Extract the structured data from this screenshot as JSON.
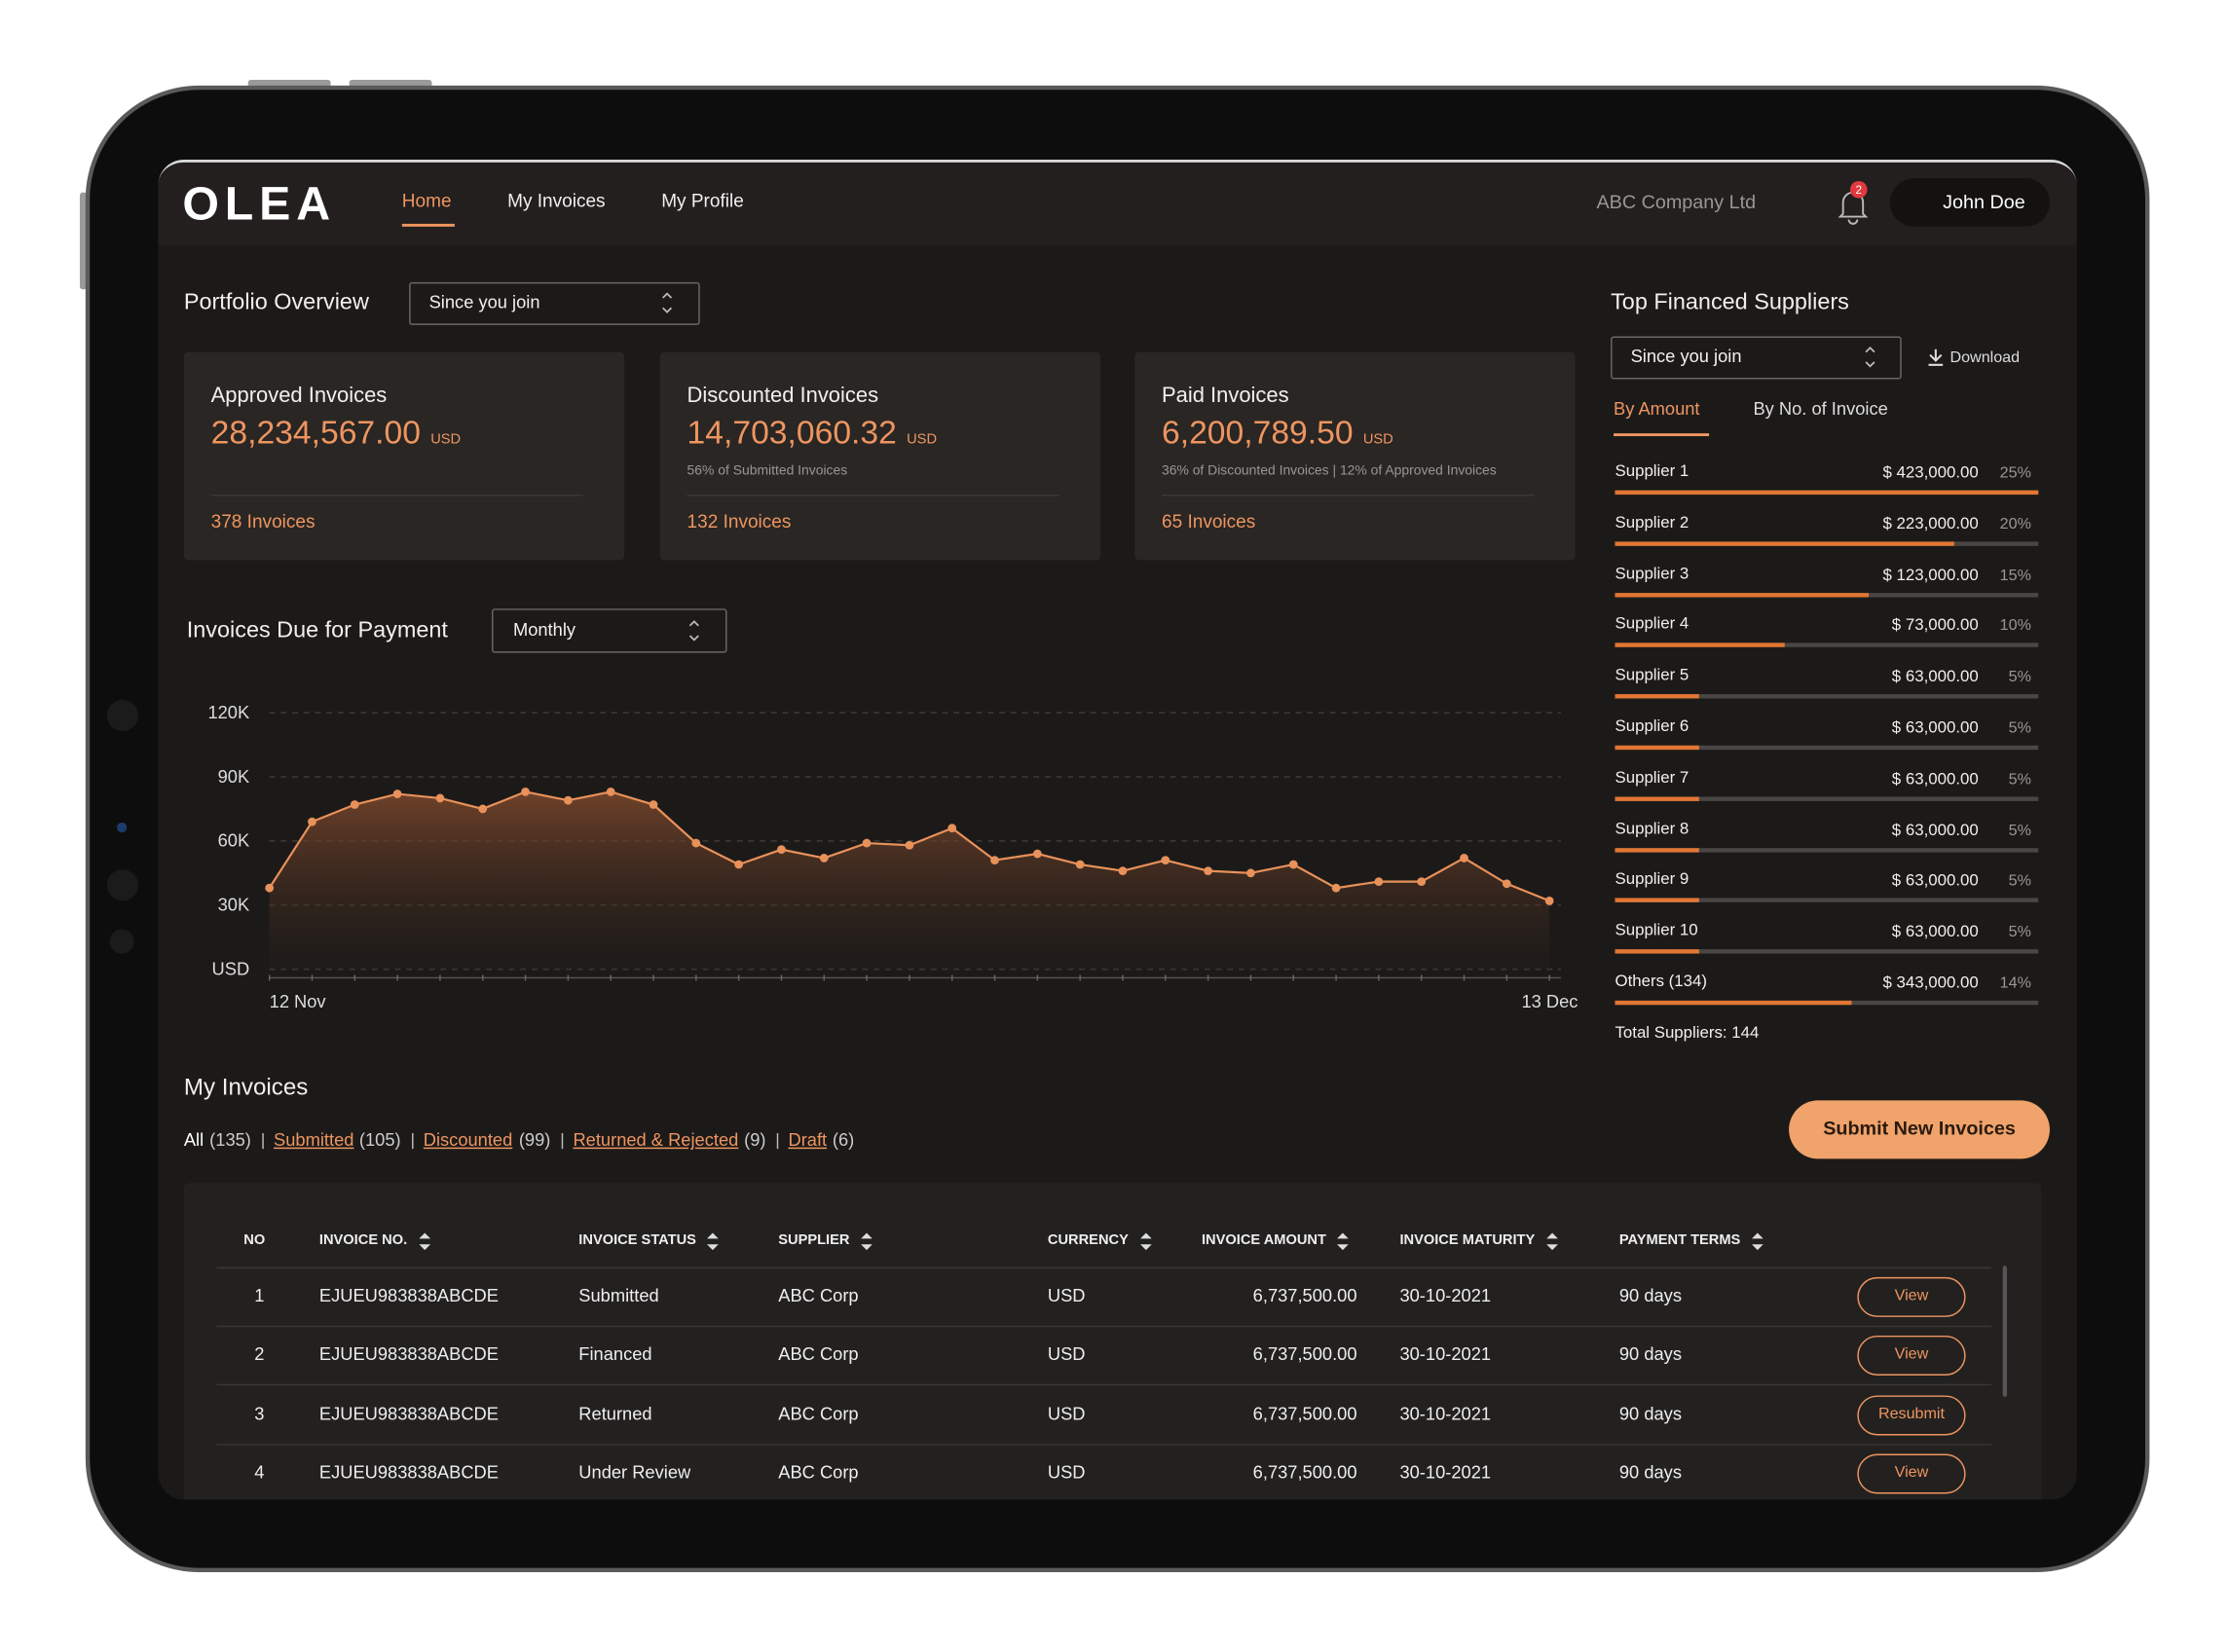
{
  "nav": {
    "logo": "OLEA",
    "links": [
      "Home",
      "My Invoices",
      "My Profile"
    ],
    "company": "ABC Company Ltd",
    "notifications": "2",
    "user": "John Doe"
  },
  "portfolio": {
    "title": "Portfolio Overview",
    "period": "Since you join",
    "cards": [
      {
        "title": "Approved Invoices",
        "amount": "28,234,567.00",
        "currency": "USD",
        "count": "378 Invoices"
      },
      {
        "title": "Discounted Invoices",
        "amount": "14,703,060.32",
        "currency": "USD",
        "note": "56% of Submitted Invoices",
        "count": "132 Invoices"
      },
      {
        "title": "Paid Invoices",
        "amount": "6,200,789.50",
        "currency": "USD",
        "note": "36% of Discounted Invoices | 12% of Approved Invoices",
        "count": "65 Invoices"
      }
    ]
  },
  "chart_data": {
    "type": "line",
    "title": "Invoices Due for Payment",
    "period": "Monthly",
    "categories": [
      "12 Nov",
      null,
      null,
      null,
      null,
      null,
      null,
      null,
      null,
      null,
      null,
      null,
      null,
      null,
      null,
      null,
      null,
      null,
      null,
      null,
      null,
      null,
      null,
      null,
      null,
      null,
      null,
      null,
      null,
      null,
      "13 Dec"
    ],
    "values": [
      38000,
      69000,
      77000,
      82000,
      80000,
      75000,
      83000,
      79000,
      83000,
      77000,
      59000,
      49000,
      56000,
      52000,
      59000,
      58000,
      66000,
      51000,
      54000,
      49000,
      46000,
      51000,
      46000,
      45000,
      49000,
      38000,
      41000,
      41000,
      52000,
      40000,
      32000
    ],
    "color": "#e8915a",
    "ylim": [
      0,
      120000
    ],
    "yticks": [
      {
        "value": 0,
        "label": "USD"
      },
      {
        "value": 30000,
        "label": "30K"
      },
      {
        "value": 60000,
        "label": "60K"
      },
      {
        "value": 90000,
        "label": "90K"
      },
      {
        "value": 120000,
        "label": "120K"
      }
    ],
    "grid": true
  },
  "suppliers": {
    "title": "Top Financed Suppliers",
    "period": "Since you join",
    "download": "Download",
    "tabs": [
      "By Amount",
      "By No. of Invoice"
    ],
    "rows": [
      {
        "name": "Supplier 1",
        "amount": "$ 423,000.00",
        "share": {
          "value": 25,
          "label": "25%"
        }
      },
      {
        "name": "Supplier 2",
        "amount": "$ 223,000.00",
        "share": {
          "value": 20,
          "label": "20%"
        }
      },
      {
        "name": "Supplier 3",
        "amount": "$ 123,000.00",
        "share": {
          "value": 15,
          "label": "15%"
        }
      },
      {
        "name": "Supplier 4",
        "amount": "$ 73,000.00",
        "share": {
          "value": 10,
          "label": "10%"
        }
      },
      {
        "name": "Supplier 5",
        "amount": "$ 63,000.00",
        "share": {
          "value": 5,
          "label": "5%"
        }
      },
      {
        "name": "Supplier 6",
        "amount": "$ 63,000.00",
        "share": {
          "value": 5,
          "label": "5%"
        }
      },
      {
        "name": "Supplier 7",
        "amount": "$ 63,000.00",
        "share": {
          "value": 5,
          "label": "5%"
        }
      },
      {
        "name": "Supplier 8",
        "amount": "$ 63,000.00",
        "share": {
          "value": 5,
          "label": "5%"
        }
      },
      {
        "name": "Supplier 9",
        "amount": "$ 63,000.00",
        "share": {
          "value": 5,
          "label": "5%"
        }
      },
      {
        "name": "Supplier 10",
        "amount": "$ 63,000.00",
        "share": {
          "value": 5,
          "label": "5%"
        }
      },
      {
        "name": "Others (134)",
        "amount": "$ 343,000.00",
        "share": {
          "value": 14,
          "label": "14%"
        }
      }
    ],
    "total": "Total Suppliers: 144"
  },
  "invoices": {
    "title": "My Invoices",
    "submit": "Submit New Invoices",
    "filters": [
      {
        "label": "All",
        "count": "(135)"
      },
      {
        "label": "Submitted",
        "count": "(105)"
      },
      {
        "label": "Discounted",
        "count": "(99)"
      },
      {
        "label": "Returned & Rejected",
        "count": "(9)"
      },
      {
        "label": "Draft",
        "count": "(6)"
      }
    ],
    "columns": [
      "NO",
      "INVOICE NO.",
      "INVOICE STATUS",
      "SUPPLIER",
      "CURRENCY",
      "INVOICE AMOUNT",
      "INVOICE MATURITY",
      "PAYMENT TERMS"
    ],
    "rows": [
      [
        "1",
        "EJUEU983838ABCDE",
        "Submitted",
        "ABC Corp",
        "USD",
        "6,737,500.00",
        "30-10-2021",
        "90 days",
        "View"
      ],
      [
        "2",
        "EJUEU983838ABCDE",
        "Financed",
        "ABC Corp",
        "USD",
        "6,737,500.00",
        "30-10-2021",
        "90 days",
        "View"
      ],
      [
        "3",
        "EJUEU983838ABCDE",
        "Returned",
        "ABC Corp",
        "USD",
        "6,737,500.00",
        "30-10-2021",
        "90 days",
        "Resubmit"
      ],
      [
        "4",
        "EJUEU983838ABCDE",
        "Under Review",
        "ABC Corp",
        "USD",
        "6,737,500.00",
        "30-10-2021",
        "90 days",
        "View"
      ]
    ]
  }
}
